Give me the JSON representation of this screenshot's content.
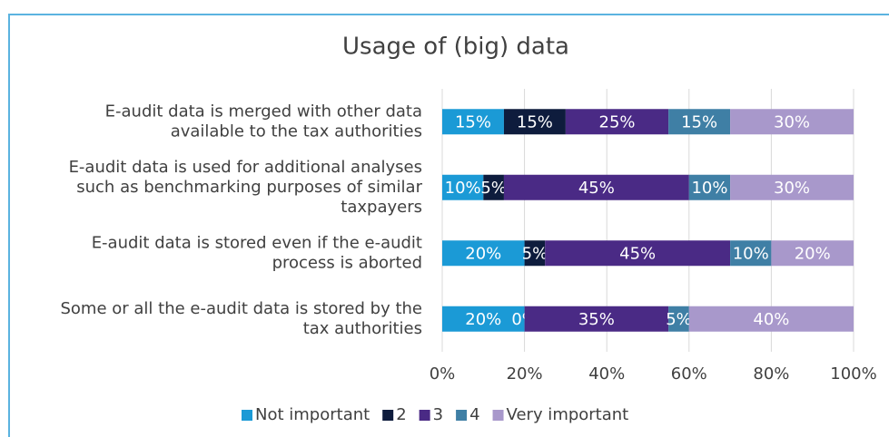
{
  "chart_data": {
    "type": "stacked_barh",
    "title": "Usage of (big) data",
    "categories": [
      [
        "E-audit data is merged with other data",
        "available to the tax authorities"
      ],
      [
        "E-audit data is used for additional analyses",
        "such as benchmarking purposes of similar",
        "taxpayers"
      ],
      [
        "E-audit data is stored even if the e-audit",
        "process is aborted"
      ],
      [
        "Some or all the e-audit data is stored by the",
        "tax authorities"
      ]
    ],
    "series": [
      {
        "name": "Not important",
        "color": "#1b9ad6",
        "values": [
          15,
          10,
          20,
          20
        ],
        "value_labels": [
          "15%",
          "10%",
          "20%",
          "20%"
        ]
      },
      {
        "name": "2",
        "color": "#0e1c3d",
        "values": [
          15,
          5,
          5,
          0
        ],
        "value_labels": [
          "15%",
          "5%",
          "5%",
          "0%"
        ]
      },
      {
        "name": "3",
        "color": "#4a2a85",
        "values": [
          25,
          45,
          45,
          35
        ],
        "value_labels": [
          "25%",
          "45%",
          "45%",
          "35%"
        ]
      },
      {
        "name": "4",
        "color": "#3f7fa5",
        "values": [
          15,
          10,
          10,
          5
        ],
        "value_labels": [
          "15%",
          "10%",
          "10%",
          "5%"
        ]
      },
      {
        "name": "Very important",
        "color": "#a898cb",
        "values": [
          30,
          30,
          20,
          40
        ],
        "value_labels": [
          "30%",
          "30%",
          "20%",
          "40%"
        ]
      }
    ],
    "xlim": [
      0,
      100
    ],
    "xticks": [
      {
        "value": 0,
        "label": "0%"
      },
      {
        "value": 20,
        "label": "20%"
      },
      {
        "value": 40,
        "label": "40%"
      },
      {
        "value": 60,
        "label": "60%"
      },
      {
        "value": 80,
        "label": "80%"
      },
      {
        "value": 100,
        "label": "100%"
      }
    ],
    "grid": true,
    "legend": "bottom"
  }
}
